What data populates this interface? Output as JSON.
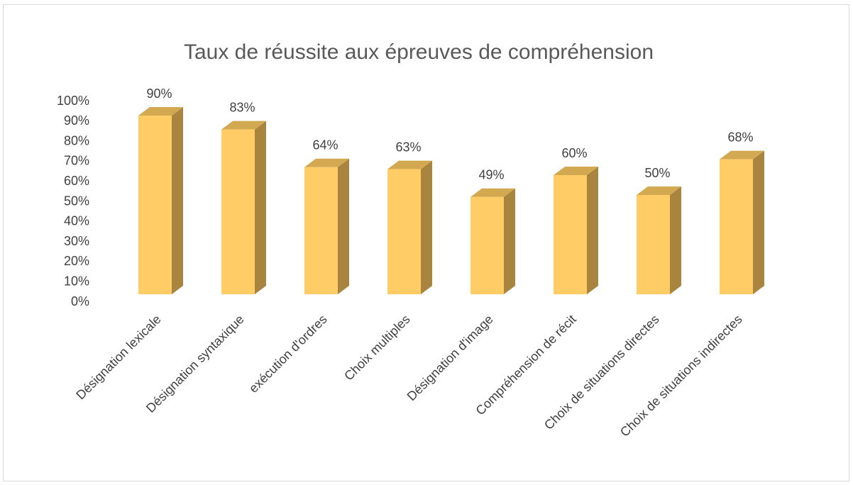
{
  "chart_data": {
    "type": "bar3d",
    "title": "Taux de réussite aux épreuves de compréhension",
    "categories": [
      "Désignation lexicale",
      "Désignation syntaxique",
      "exécution d'ordres",
      "Choix multiples",
      "Désignation d'image",
      "Compréhension de récit",
      "Choix de situations directes",
      "Choix de situations indirectes"
    ],
    "values": [
      90,
      83,
      64,
      63,
      49,
      60,
      50,
      68
    ],
    "value_labels": [
      "90%",
      "83%",
      "64%",
      "63%",
      "49%",
      "60%",
      "50%",
      "68%"
    ],
    "color": "#FFCC66",
    "ylim": [
      0,
      100
    ],
    "yticks": [
      {
        "value": 0,
        "label": "0%"
      },
      {
        "value": 10,
        "label": "10%"
      },
      {
        "value": 20,
        "label": "20%"
      },
      {
        "value": 30,
        "label": "30%"
      },
      {
        "value": 40,
        "label": "40%"
      },
      {
        "value": 50,
        "label": "50%"
      },
      {
        "value": 60,
        "label": "60%"
      },
      {
        "value": 70,
        "label": "70%"
      },
      {
        "value": 80,
        "label": "80%"
      },
      {
        "value": 90,
        "label": "90%"
      },
      {
        "value": 100,
        "label": "100%"
      }
    ],
    "grid": false
  }
}
